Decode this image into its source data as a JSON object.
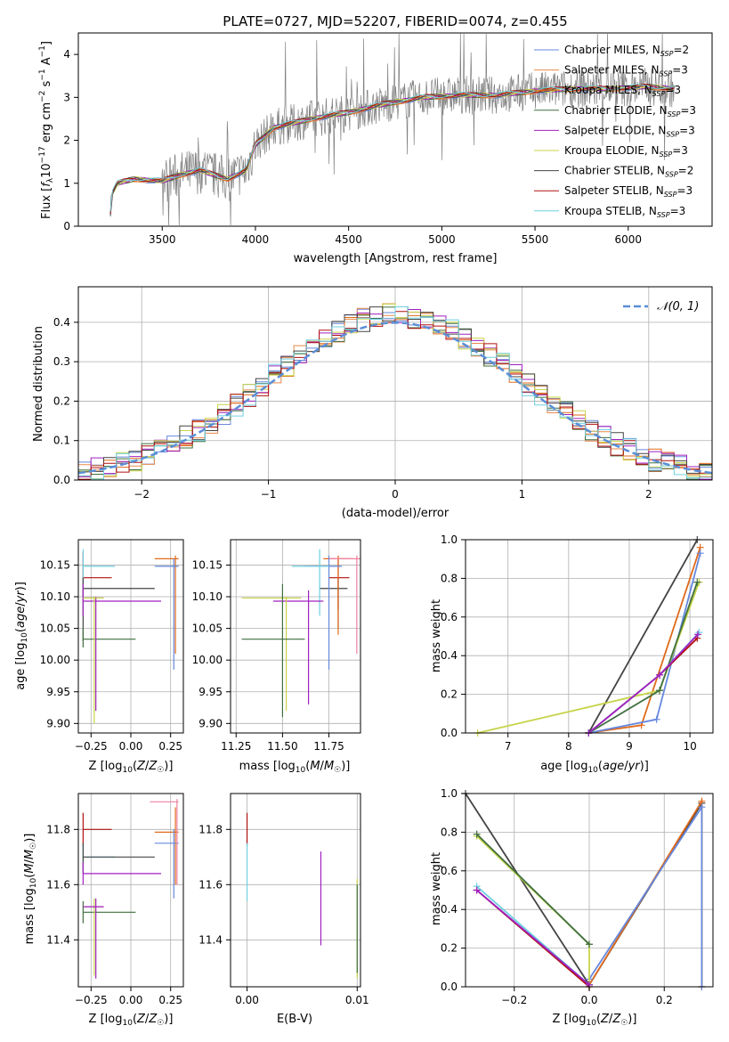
{
  "chart_data": [
    {
      "id": "spectrum",
      "type": "line",
      "title": "PLATE=0727, MJD=52207, FIBERID=0074, z=0.455",
      "xlabel": "wavelength [Angstrom, rest frame]",
      "ylabel": "Flux [f_λ 10^-17 erg cm^-2 s^-1 A^-1]",
      "xlim": [
        3050,
        6450
      ],
      "ylim": [
        0,
        4.5
      ],
      "xticks": [
        3500,
        4000,
        4500,
        5000,
        5500,
        6000
      ],
      "yticks": [
        0,
        1,
        2,
        3,
        4
      ],
      "continuum_points": [
        [
          3220,
          0.0
        ],
        [
          3225,
          0.7
        ],
        [
          3260,
          1.0
        ],
        [
          3350,
          1.1
        ],
        [
          3500,
          1.05
        ],
        [
          3600,
          1.2
        ],
        [
          3700,
          1.3
        ],
        [
          3850,
          1.1
        ],
        [
          3950,
          1.3
        ],
        [
          4000,
          1.9
        ],
        [
          4100,
          2.3
        ],
        [
          4300,
          2.5
        ],
        [
          4500,
          2.65
        ],
        [
          4700,
          2.85
        ],
        [
          4900,
          3.0
        ],
        [
          5100,
          3.05
        ],
        [
          5300,
          3.05
        ],
        [
          5500,
          3.15
        ],
        [
          5700,
          3.2
        ],
        [
          5900,
          3.2
        ],
        [
          6100,
          3.25
        ],
        [
          6250,
          3.2
        ]
      ],
      "legend": [
        "Chabrier MILES, N_SSP=2",
        "Salpeter MILES, N_SSP=3",
        "Kroupa MILES, N_SSP=3",
        "Chabrier ELODIE, N_SSP=3",
        "Salpeter ELODIE, N_SSP=3",
        "Kroupa ELODIE, N_SSP=3",
        "Chabrier STELIB, N_SSP=2",
        "Salpeter STELIB, N_SSP=3",
        "Kroupa STELIB, N_SSP=3"
      ],
      "legend_colors": [
        "#6688dd",
        "#e8894a",
        "#e06a1a",
        "#3f6f3f",
        "#a020c0",
        "#c8d44a",
        "#444444",
        "#b01010",
        "#70d0e0"
      ],
      "legend_position": "upper-right",
      "data_color": "#808080"
    },
    {
      "id": "residuals",
      "type": "histogram",
      "xlabel": "(data-model)/error",
      "ylabel": "Normed distribution",
      "xlim": [
        -2.5,
        2.5
      ],
      "ylim": [
        0,
        0.49
      ],
      "xticks": [
        -2,
        -1,
        0,
        1,
        2
      ],
      "yticks": [
        0.0,
        0.1,
        0.2,
        0.3,
        0.4
      ],
      "grid": true,
      "legend": "𝒩(0, 1)",
      "legend_position": "upper-right",
      "gaussian": {
        "mu": 0,
        "sigma": 1,
        "color": "#5b8ed6"
      },
      "bin_width": 0.1,
      "hist_base": [
        0.01,
        0.02,
        0.025,
        0.03,
        0.035,
        0.04,
        0.045,
        0.05,
        0.06,
        0.07,
        0.08,
        0.095,
        0.11,
        0.13,
        0.15,
        0.165,
        0.17,
        0.19,
        0.21,
        0.23,
        0.25,
        0.27,
        0.29,
        0.31,
        0.32,
        0.33,
        0.345,
        0.355,
        0.37,
        0.38,
        0.385,
        0.39,
        0.395,
        0.4,
        0.41,
        0.42,
        0.42,
        0.42,
        0.41,
        0.4,
        0.39,
        0.375,
        0.36,
        0.35,
        0.33,
        0.31,
        0.29,
        0.27,
        0.25,
        0.23,
        0.21,
        0.19,
        0.17,
        0.16,
        0.15,
        0.14,
        0.125,
        0.11,
        0.1,
        0.09,
        0.08,
        0.07,
        0.06,
        0.055,
        0.05,
        0.045,
        0.04,
        0.035,
        0.03,
        0.025,
        0.02,
        0.015,
        0.01,
        0.01,
        0.008,
        0.006,
        0.005,
        0.004,
        0.003,
        0.002,
        0.002,
        0.002,
        0.001,
        0.001,
        0.001,
        0.001,
        0.001,
        0.001,
        0.001,
        0.001
      ],
      "series_colors": [
        "#6688dd",
        "#e8894a",
        "#e06a1a",
        "#3f6f3f",
        "#a020c0",
        "#c8d44a",
        "#444444",
        "#b01010",
        "#70d0e0"
      ]
    },
    {
      "id": "age-vs-Z",
      "type": "errorbar",
      "xlabel": "Z [log10(Z/Z☉)]",
      "ylabel": "age  [log10(age/yr)]",
      "xlim": [
        -0.33,
        0.33
      ],
      "ylim": [
        9.885,
        10.19
      ],
      "xticks": [
        -0.25,
        0.0,
        0.25
      ],
      "xticklabels": [
        "−0.25",
        "0.00",
        "0.25"
      ],
      "yticks": [
        9.9,
        9.95,
        10.0,
        10.05,
        10.1,
        10.15
      ],
      "grid": true,
      "points": [
        {
          "x": -0.3,
          "y": 10.13,
          "x0": -0.3,
          "x1": -0.12,
          "y0": 10.1,
          "y1": 10.17,
          "c": "#b01010"
        },
        {
          "x": -0.3,
          "y": 10.148,
          "x0": -0.3,
          "x1": -0.1,
          "y0": 10.07,
          "y1": 10.175,
          "c": "#70d0e0"
        },
        {
          "x": -0.3,
          "y": 10.113,
          "x0": -0.3,
          "x1": 0.15,
          "y0": 10.03,
          "y1": 10.13,
          "c": "#444444"
        },
        {
          "x": -0.3,
          "y": 10.093,
          "x0": -0.3,
          "x1": 0.19,
          "y0": 10.07,
          "y1": 10.12,
          "c": "#a020c0"
        },
        {
          "x": -0.3,
          "y": 10.033,
          "x0": -0.3,
          "x1": 0.03,
          "y0": 10.02,
          "y1": 10.05,
          "c": "#3f6f3f"
        },
        {
          "x": -0.22,
          "y": 10.098,
          "x0": -0.3,
          "x1": -0.17,
          "y0": 9.92,
          "y1": 10.1,
          "c": "#a020c0"
        },
        {
          "x": -0.23,
          "y": 10.098,
          "x0": -0.3,
          "x1": -0.17,
          "y0": 9.9,
          "y1": 10.1,
          "c": "#c8d44a"
        },
        {
          "x": 0.28,
          "y": 10.16,
          "x0": 0.15,
          "x1": 0.3,
          "y0": 10.01,
          "y1": 10.165,
          "c": "#e06a1a"
        },
        {
          "x": 0.27,
          "y": 10.148,
          "x0": 0.15,
          "x1": 0.3,
          "y0": 9.985,
          "y1": 10.16,
          "c": "#6688dd"
        }
      ]
    },
    {
      "id": "age-vs-mass",
      "type": "errorbar",
      "xlabel": "mass [log10(M/M☉)]",
      "ylabel": "",
      "xlim": [
        11.22,
        11.92
      ],
      "ylim": [
        9.885,
        10.19
      ],
      "xticks": [
        11.25,
        11.5,
        11.75
      ],
      "xticklabels": [
        "11.25",
        "11.50",
        "11.75"
      ],
      "yticks": [
        9.9,
        9.95,
        10.0,
        10.05,
        10.1,
        10.15
      ],
      "grid": true,
      "points": [
        {
          "x": 11.8,
          "y": 10.13,
          "x0": 11.75,
          "x1": 11.86,
          "y0": 10.08,
          "y1": 10.16,
          "c": "#b01010"
        },
        {
          "x": 11.8,
          "y": 10.113,
          "x0": 11.7,
          "x1": 11.85,
          "y0": 10.05,
          "y1": 10.13,
          "c": "#444444"
        },
        {
          "x": 11.8,
          "y": 10.16,
          "x0": 11.72,
          "x1": 11.87,
          "y0": 10.04,
          "y1": 10.165,
          "c": "#e06a1a"
        },
        {
          "x": 11.9,
          "y": 10.16,
          "x0": 11.75,
          "x1": 11.92,
          "y0": 10.01,
          "y1": 10.165,
          "c": "#f080a0"
        },
        {
          "x": 11.75,
          "y": 10.148,
          "x0": 11.62,
          "x1": 11.82,
          "y0": 9.985,
          "y1": 10.165,
          "c": "#6688dd"
        },
        {
          "x": 11.7,
          "y": 10.148,
          "x0": 11.55,
          "x1": 11.75,
          "y0": 10.07,
          "y1": 10.175,
          "c": "#70d0e0"
        },
        {
          "x": 11.64,
          "y": 10.093,
          "x0": 11.45,
          "x1": 11.72,
          "y0": 9.93,
          "y1": 10.11,
          "c": "#a020c0"
        },
        {
          "x": 11.52,
          "y": 10.098,
          "x0": 11.28,
          "x1": 11.6,
          "y0": 9.92,
          "y1": 10.1,
          "c": "#c8d44a"
        },
        {
          "x": 11.5,
          "y": 10.033,
          "x0": 11.28,
          "x1": 11.62,
          "y0": 9.91,
          "y1": 10.12,
          "c": "#3f6f3f"
        }
      ]
    },
    {
      "id": "weight-vs-age",
      "type": "line",
      "xlabel": "age  [log10(age/yr)]",
      "ylabel": "mass weight",
      "xlim": [
        6.3,
        10.38
      ],
      "ylim": [
        0,
        1
      ],
      "xticks": [
        7,
        8,
        9,
        10
      ],
      "yticks": [
        0.0,
        0.2,
        0.4,
        0.6,
        0.8,
        1.0
      ],
      "grid": true,
      "series": [
        {
          "c": "#444444",
          "pts": [
            [
              8.33,
              0.0
            ],
            [
              10.12,
              1.0
            ]
          ]
        },
        {
          "c": "#e06a1a",
          "pts": [
            [
              8.33,
              0.0
            ],
            [
              9.2,
              0.04
            ],
            [
              10.17,
              0.96
            ]
          ]
        },
        {
          "c": "#6688dd",
          "pts": [
            [
              8.33,
              0.0
            ],
            [
              9.45,
              0.07
            ],
            [
              10.17,
              0.93
            ]
          ]
        },
        {
          "c": "#c8d44a",
          "pts": [
            [
              6.5,
              0.0
            ],
            [
              9.5,
              0.22
            ],
            [
              10.15,
              0.78
            ]
          ]
        },
        {
          "c": "#3f6f3f",
          "pts": [
            [
              8.33,
              0.0
            ],
            [
              9.5,
              0.22
            ],
            [
              10.12,
              0.78
            ]
          ]
        },
        {
          "c": "#b01010",
          "pts": [
            [
              8.33,
              0.0
            ],
            [
              9.5,
              0.3
            ],
            [
              10.12,
              0.49
            ]
          ]
        },
        {
          "c": "#70d0e0",
          "pts": [
            [
              8.33,
              0.0
            ],
            [
              9.5,
              0.3
            ],
            [
              10.15,
              0.52
            ]
          ]
        },
        {
          "c": "#a020c0",
          "pts": [
            [
              8.33,
              0.0
            ],
            [
              9.5,
              0.3
            ],
            [
              10.13,
              0.51
            ]
          ]
        }
      ]
    },
    {
      "id": "mass-vs-Z",
      "type": "errorbar",
      "xlabel": "Z [log10(Z/Z☉)]",
      "ylabel": "mass [log10(M/M☉)]",
      "xlim": [
        -0.33,
        0.33
      ],
      "ylim": [
        11.23,
        11.93
      ],
      "xticks": [
        -0.25,
        0.0,
        0.25
      ],
      "xticklabels": [
        "−0.25",
        "0.00",
        "0.25"
      ],
      "yticks": [
        11.4,
        11.6,
        11.8
      ],
      "grid": true,
      "points": [
        {
          "x": -0.3,
          "y": 11.8,
          "x0": -0.3,
          "x1": -0.12,
          "y0": 11.74,
          "y1": 11.86,
          "c": "#b01010"
        },
        {
          "x": -0.3,
          "y": 11.7,
          "x0": -0.3,
          "x1": -0.1,
          "y0": 11.64,
          "y1": 11.75,
          "c": "#70d0e0"
        },
        {
          "x": -0.3,
          "y": 11.7,
          "x0": -0.3,
          "x1": 0.15,
          "y0": 11.64,
          "y1": 11.75,
          "c": "#444444"
        },
        {
          "x": -0.3,
          "y": 11.64,
          "x0": -0.3,
          "x1": 0.19,
          "y0": 11.6,
          "y1": 11.68,
          "c": "#a020c0"
        },
        {
          "x": -0.3,
          "y": 11.5,
          "x0": -0.3,
          "x1": 0.03,
          "y0": 11.46,
          "y1": 11.54,
          "c": "#3f6f3f"
        },
        {
          "x": -0.23,
          "y": 11.52,
          "x0": -0.3,
          "x1": -0.17,
          "y0": 11.27,
          "y1": 11.55,
          "c": "#c8d44a"
        },
        {
          "x": -0.22,
          "y": 11.52,
          "x0": -0.3,
          "x1": -0.17,
          "y0": 11.26,
          "y1": 11.55,
          "c": "#a020c0"
        },
        {
          "x": 0.28,
          "y": 11.79,
          "x0": 0.15,
          "x1": 0.3,
          "y0": 11.6,
          "y1": 11.88,
          "c": "#e06a1a"
        },
        {
          "x": 0.27,
          "y": 11.75,
          "x0": 0.15,
          "x1": 0.3,
          "y0": 11.55,
          "y1": 11.8,
          "c": "#6688dd"
        },
        {
          "x": 0.29,
          "y": 11.9,
          "x0": 0.12,
          "x1": 0.3,
          "y0": 11.6,
          "y1": 11.91,
          "c": "#f080a0"
        }
      ]
    },
    {
      "id": "mass-vs-EBV",
      "type": "errorbar",
      "xlabel": "E(B-V)",
      "ylabel": "",
      "xlim": [
        -0.0015,
        0.0103
      ],
      "ylim": [
        11.23,
        11.93
      ],
      "xticks": [
        0.0,
        0.01
      ],
      "xticklabels": [
        "0.00",
        "0.01"
      ],
      "yticks": [
        11.4,
        11.6,
        11.8
      ],
      "grid": true,
      "points": [
        {
          "x": 0.0,
          "y": 11.8,
          "x0": 0.0,
          "x1": 0.0,
          "y0": 11.74,
          "y1": 11.86,
          "c": "#b01010"
        },
        {
          "x": 0.0,
          "y": 11.7,
          "x0": 0.0,
          "x1": 0.0,
          "y0": 11.54,
          "y1": 11.75,
          "c": "#70d0e0"
        },
        {
          "x": 0.0067,
          "y": 11.55,
          "x0": 0.0067,
          "x1": 0.0067,
          "y0": 11.38,
          "y1": 11.72,
          "c": "#a020c0"
        },
        {
          "x": 0.01,
          "y": 11.45,
          "x0": 0.01,
          "x1": 0.01,
          "y0": 11.26,
          "y1": 11.62,
          "c": "#c8d44a"
        },
        {
          "x": 0.01,
          "y": 11.45,
          "x0": 0.01,
          "x1": 0.01,
          "y0": 11.28,
          "y1": 11.6,
          "c": "#3f6f3f"
        }
      ]
    },
    {
      "id": "weight-vs-Z",
      "type": "line",
      "xlabel": "Z [log10(Z/Z☉)]",
      "ylabel": "mass weight",
      "xlim": [
        -0.33,
        0.33
      ],
      "ylim": [
        0,
        1
      ],
      "xticks": [
        -0.2,
        0.0,
        0.2
      ],
      "xticklabels": [
        "−0.2",
        "0.0",
        "0.2"
      ],
      "yticks": [
        0.0,
        0.2,
        0.4,
        0.6,
        0.8,
        1.0
      ],
      "grid": true,
      "series": [
        {
          "c": "#444444",
          "pts": [
            [
              -0.33,
              1.0
            ],
            [
              0.0,
              0.01
            ],
            [
              0.3,
              0.95
            ]
          ]
        },
        {
          "c": "#e06a1a",
          "pts": [
            [
              0.0,
              0.01
            ],
            [
              0.3,
              0.96
            ],
            [
              0.3,
              0.0
            ]
          ]
        },
        {
          "c": "#6688dd",
          "pts": [
            [
              0.0,
              0.04
            ],
            [
              0.3,
              0.93
            ],
            [
              0.3,
              0.0
            ]
          ]
        },
        {
          "c": "#c8d44a",
          "pts": [
            [
              -0.3,
              0.78
            ],
            [
              0.0,
              0.22
            ],
            [
              0.0,
              0.0
            ]
          ]
        },
        {
          "c": "#3f6f3f",
          "pts": [
            [
              -0.3,
              0.79
            ],
            [
              0.0,
              0.22
            ]
          ]
        },
        {
          "c": "#b01010",
          "pts": [
            [
              -0.3,
              0.5
            ],
            [
              0.0,
              0.0
            ]
          ]
        },
        {
          "c": "#70d0e0",
          "pts": [
            [
              -0.3,
              0.52
            ],
            [
              0.0,
              0.01
            ]
          ]
        },
        {
          "c": "#a020c0",
          "pts": [
            [
              -0.3,
              0.5
            ],
            [
              0.0,
              0.01
            ]
          ]
        }
      ]
    }
  ]
}
